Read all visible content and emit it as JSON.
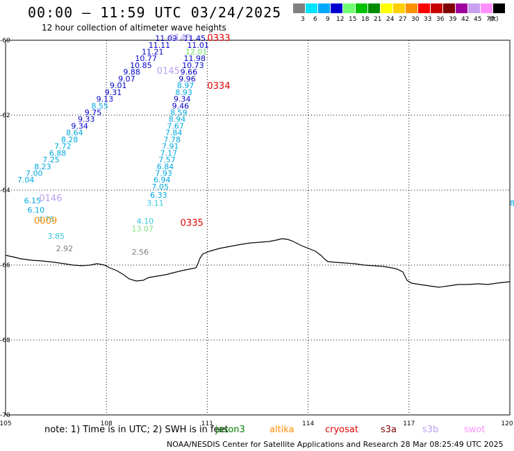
{
  "header": {
    "title": "00:00 – 11:59 UTC 03/24/2025",
    "subtitle": "12 hour collection of altimeter wave heights"
  },
  "legend": {
    "unit": "(ft)",
    "bins": [
      {
        "label": "3",
        "color": "#808080"
      },
      {
        "label": "6",
        "color": "#00e5ff"
      },
      {
        "label": "9",
        "color": "#00a8ff"
      },
      {
        "label": "12",
        "color": "#0000d0"
      },
      {
        "label": "15",
        "color": "#70ff70"
      },
      {
        "label": "18",
        "color": "#00c000"
      },
      {
        "label": "21",
        "color": "#008c00"
      },
      {
        "label": "24",
        "color": "#ffff00"
      },
      {
        "label": "27",
        "color": "#ffd000"
      },
      {
        "label": "30",
        "color": "#ff9000"
      },
      {
        "label": "33",
        "color": "#ff0000"
      },
      {
        "label": "36",
        "color": "#c80000"
      },
      {
        "label": "39",
        "color": "#800000"
      },
      {
        "label": "42",
        "color": "#a000a0"
      },
      {
        "label": "45",
        "color": "#c8a0f0"
      },
      {
        "label": "70",
        "color": "#ff90ff"
      },
      {
        "label": "",
        "color": "#000000"
      }
    ]
  },
  "axes": {
    "x_ticks": [
      "105",
      "108",
      "111",
      "114",
      "117",
      "120"
    ],
    "y_ticks": [
      "-60",
      "-62",
      "-64",
      "-66",
      "-68",
      "-70"
    ],
    "lon_range": [
      105,
      120
    ],
    "lat_range": [
      -60,
      -70
    ]
  },
  "passes": [
    {
      "label": "0333",
      "color": "#e00000",
      "lon": 111.0,
      "lat": -60.02
    },
    {
      "label": "0334",
      "color": "#e00000",
      "lon": 111.0,
      "lat": -61.3
    },
    {
      "label": "0335",
      "color": "#e00000",
      "lon": 110.2,
      "lat": -64.95
    },
    {
      "label": "0145",
      "color": "#b8a0f0",
      "lon": 109.85,
      "lat": -60.02
    },
    {
      "label": "0145",
      "color": "#b8a0f0",
      "lon": 109.5,
      "lat": -60.9
    },
    {
      "label": "0146",
      "color": "#b8a0f0",
      "lon": 106.0,
      "lat": -64.3
    },
    {
      "label": "0009",
      "color": "#ff8c00",
      "lon": 105.85,
      "lat": -64.9
    }
  ],
  "observations": [
    {
      "v": "11.09",
      "c": "#0000c8",
      "lon": 109.45,
      "lat": -60.02
    },
    {
      "v": "11.11",
      "c": "#0000c8",
      "lon": 109.25,
      "lat": -60.2
    },
    {
      "v": "11.21",
      "c": "#0000c8",
      "lon": 109.05,
      "lat": -60.38
    },
    {
      "v": "10.77",
      "c": "#0000c8",
      "lon": 108.85,
      "lat": -60.56
    },
    {
      "v": "10.85",
      "c": "#0000c8",
      "lon": 108.7,
      "lat": -60.74
    },
    {
      "v": "9.88",
      "c": "#0000c8",
      "lon": 108.5,
      "lat": -60.92
    },
    {
      "v": "9.07",
      "c": "#0000c8",
      "lon": 108.35,
      "lat": -61.1
    },
    {
      "v": "9.01",
      "c": "#0000c8",
      "lon": 108.1,
      "lat": -61.28
    },
    {
      "v": "9.31",
      "c": "#0000c8",
      "lon": 107.95,
      "lat": -61.46
    },
    {
      "v": "9.13",
      "c": "#0000c8",
      "lon": 107.7,
      "lat": -61.64
    },
    {
      "v": "8.55",
      "c": "#00a8e0",
      "lon": 107.55,
      "lat": -61.82
    },
    {
      "v": "9.75",
      "c": "#0000c8",
      "lon": 107.35,
      "lat": -62.0
    },
    {
      "v": "9.33",
      "c": "#0000c8",
      "lon": 107.15,
      "lat": -62.18
    },
    {
      "v": "9.34",
      "c": "#0000c8",
      "lon": 106.95,
      "lat": -62.36
    },
    {
      "v": "8.64",
      "c": "#00a8e0",
      "lon": 106.8,
      "lat": -62.54
    },
    {
      "v": "8.28",
      "c": "#00a8e0",
      "lon": 106.65,
      "lat": -62.72
    },
    {
      "v": "7.72",
      "c": "#00a8e0",
      "lon": 106.45,
      "lat": -62.9
    },
    {
      "v": "6.88",
      "c": "#00a8e0",
      "lon": 106.3,
      "lat": -63.08
    },
    {
      "v": "7.25",
      "c": "#00a8e0",
      "lon": 106.1,
      "lat": -63.26
    },
    {
      "v": "8.23",
      "c": "#00a8e0",
      "lon": 105.85,
      "lat": -63.44
    },
    {
      "v": "7.00",
      "c": "#00a8e0",
      "lon": 105.6,
      "lat": -63.62
    },
    {
      "v": "7.04",
      "c": "#00a8e0",
      "lon": 105.35,
      "lat": -63.8
    },
    {
      "v": "6.15",
      "c": "#00a8e0",
      "lon": 105.55,
      "lat": -64.35
    },
    {
      "v": "6.10",
      "c": "#00a8e0",
      "lon": 105.65,
      "lat": -64.6
    },
    {
      "v": "4.75",
      "c": "#30c8e0",
      "lon": 105.95,
      "lat": -64.85
    },
    {
      "v": "3.85",
      "c": "#30c8e0",
      "lon": 106.25,
      "lat": -65.3
    },
    {
      "v": "2.92",
      "c": "#808080",
      "lon": 106.5,
      "lat": -65.63
    },
    {
      "v": "11.45",
      "c": "#0000c8",
      "lon": 110.3,
      "lat": -60.02
    },
    {
      "v": "11.01",
      "c": "#0000c8",
      "lon": 110.4,
      "lat": -60.2
    },
    {
      "v": "12.01",
      "c": "#60e060",
      "lon": 110.35,
      "lat": -60.38
    },
    {
      "v": "11.98",
      "c": "#0000c8",
      "lon": 110.3,
      "lat": -60.56
    },
    {
      "v": "10.73",
      "c": "#0000c8",
      "lon": 110.25,
      "lat": -60.74
    },
    {
      "v": "9.66",
      "c": "#0000c8",
      "lon": 110.2,
      "lat": -60.92
    },
    {
      "v": "9.96",
      "c": "#0000c8",
      "lon": 110.15,
      "lat": -61.1
    },
    {
      "v": "8.97",
      "c": "#00a8e0",
      "lon": 110.1,
      "lat": -61.28
    },
    {
      "v": "8.93",
      "c": "#00a8e0",
      "lon": 110.05,
      "lat": -61.46
    },
    {
      "v": "9.34",
      "c": "#0000c8",
      "lon": 110.0,
      "lat": -61.64
    },
    {
      "v": "9.46",
      "c": "#0000c8",
      "lon": 109.95,
      "lat": -61.82
    },
    {
      "v": "8.59",
      "c": "#00a8e0",
      "lon": 109.9,
      "lat": -62.0
    },
    {
      "v": "8.94",
      "c": "#00a8e0",
      "lon": 109.85,
      "lat": -62.18
    },
    {
      "v": "7.67",
      "c": "#00a8e0",
      "lon": 109.8,
      "lat": -62.36
    },
    {
      "v": "7.84",
      "c": "#00a8e0",
      "lon": 109.75,
      "lat": -62.54
    },
    {
      "v": "7.78",
      "c": "#00a8e0",
      "lon": 109.7,
      "lat": -62.72
    },
    {
      "v": "7.91",
      "c": "#00a8e0",
      "lon": 109.65,
      "lat": -62.9
    },
    {
      "v": "7.17",
      "c": "#00a8e0",
      "lon": 109.6,
      "lat": -63.08
    },
    {
      "v": "7.57",
      "c": "#00a8e0",
      "lon": 109.55,
      "lat": -63.26
    },
    {
      "v": "6.84",
      "c": "#00a8e0",
      "lon": 109.5,
      "lat": -63.44
    },
    {
      "v": "7.93",
      "c": "#00a8e0",
      "lon": 109.45,
      "lat": -63.62
    },
    {
      "v": "6.94",
      "c": "#00a8e0",
      "lon": 109.4,
      "lat": -63.8
    },
    {
      "v": "7.05",
      "c": "#00a8e0",
      "lon": 109.35,
      "lat": -63.98
    },
    {
      "v": "6.33",
      "c": "#00a8e0",
      "lon": 109.3,
      "lat": -64.2
    },
    {
      "v": "3.11",
      "c": "#30c8e0",
      "lon": 109.2,
      "lat": -64.42
    },
    {
      "v": "4.10",
      "c": "#30c8e0",
      "lon": 108.9,
      "lat": -64.9
    },
    {
      "v": "13.07",
      "c": "#80e080",
      "lon": 108.75,
      "lat": -65.1
    },
    {
      "v": "2.56",
      "c": "#808080",
      "lon": 108.75,
      "lat": -65.72
    },
    {
      "v": "8",
      "c": "#00a8e0",
      "lon": 120.15,
      "lat": -64.2
    },
    {
      "v": "8.2",
      "c": "#00a8e0",
      "lon": 120.0,
      "lat": -64.42
    }
  ],
  "footer": {
    "note": "note: 1) Time is in UTC; 2) SWH is in feet",
    "satellites": [
      {
        "name": "jason3",
        "color": "#008000"
      },
      {
        "name": "altika",
        "color": "#ff8c00"
      },
      {
        "name": "cryosat",
        "color": "#e00000"
      },
      {
        "name": "s3a",
        "color": "#800000"
      },
      {
        "name": "s3b",
        "color": "#b8a0f0"
      },
      {
        "name": "swot",
        "color": "#ff90ff"
      }
    ],
    "credit": "NOAA/NESDIS Center for Satellite Applications and Research    28 Mar 08:25:49 UTC 2025"
  }
}
